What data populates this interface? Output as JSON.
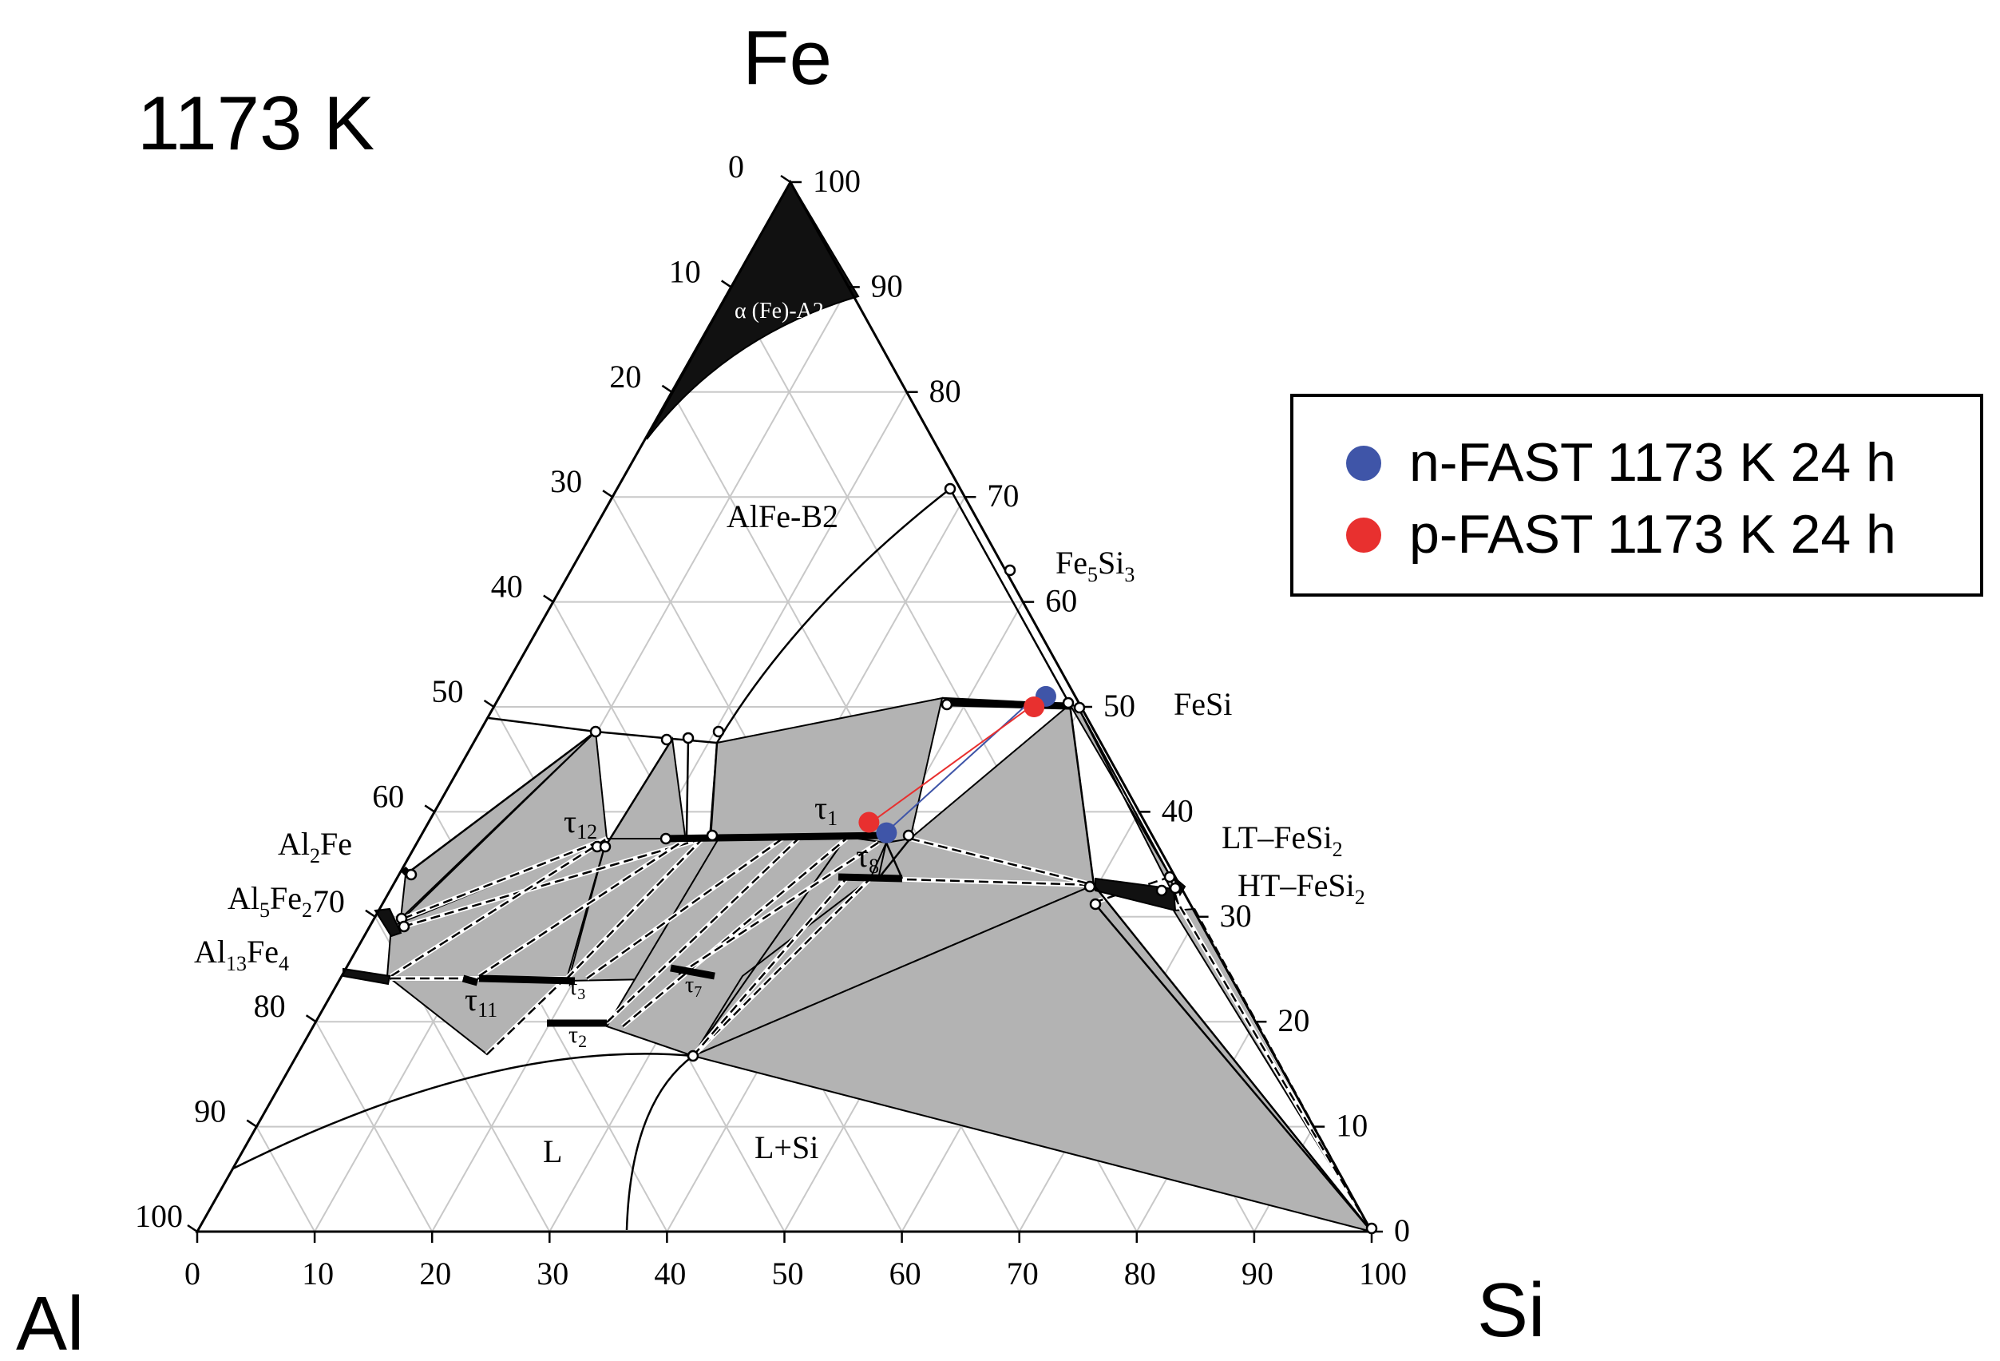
{
  "title": "1173 K",
  "corners": {
    "top": "Fe",
    "left": "Al",
    "right": "Si"
  },
  "axis_ticks": {
    "bottom": [
      "0",
      "10",
      "20",
      "30",
      "40",
      "50",
      "60",
      "70",
      "80",
      "90",
      "100"
    ],
    "left": [
      "0",
      "10",
      "20",
      "30",
      "40",
      "50",
      "60",
      "70",
      "80",
      "90",
      "100"
    ],
    "right": [
      "100",
      "90",
      "80",
      "70",
      "60",
      "50",
      "40",
      "30",
      "20",
      "10",
      "0"
    ]
  },
  "phase_labels": {
    "alpha_fe": "α (Fe)-A2",
    "alfe_b2": "AlFe-B2",
    "fe5si3_main": "Fe",
    "fe5si3_s1": "5",
    "fe5si3_mid": "Si",
    "fe5si3_s2": "3",
    "fesi": "FeSi",
    "lt_main": "LT–FeSi",
    "lt_sub": "2",
    "ht_main": "HT–FeSi",
    "ht_sub": "2",
    "al2fe_a": "Al",
    "al2fe_s": "2",
    "al2fe_b": "Fe",
    "al5fe2_a": "Al",
    "al5fe2_s1": "5",
    "al5fe2_b": "Fe",
    "al5fe2_s2": "2",
    "al13fe4_a": "Al",
    "al13fe4_s1": "13",
    "al13fe4_b": "Fe",
    "al13fe4_s2": "4",
    "tau": "τ",
    "t1": "1",
    "t2": "2",
    "t3": "3",
    "t7": "7",
    "t8": "8",
    "t11": "11",
    "t12": "12",
    "liquid": "L",
    "liquid_si": "L+Si"
  },
  "legend": {
    "items": [
      {
        "label": "n-FAST 1173 K 24 h",
        "color": "#3f55a8"
      },
      {
        "label": "p-FAST 1173 K 24 h",
        "color": "#e8302f"
      }
    ]
  },
  "chart_data": {
    "type": "scatter",
    "title": "1173 K",
    "components": [
      "Al",
      "Fe",
      "Si"
    ],
    "axis_units": "at.%",
    "series": [
      {
        "name": "n-FAST 1173 K 24 h",
        "color": "#3f55a8",
        "points": [
          {
            "Si": 46.5,
            "Fe": 51.0
          },
          {
            "Si": 39.5,
            "Fe": 38.0
          }
        ]
      },
      {
        "name": "p-FAST 1173 K 24 h",
        "color": "#e8302f",
        "points": [
          {
            "Si": 46.0,
            "Fe": 50.0
          },
          {
            "Si": 37.5,
            "Fe": 39.0
          }
        ]
      }
    ]
  }
}
